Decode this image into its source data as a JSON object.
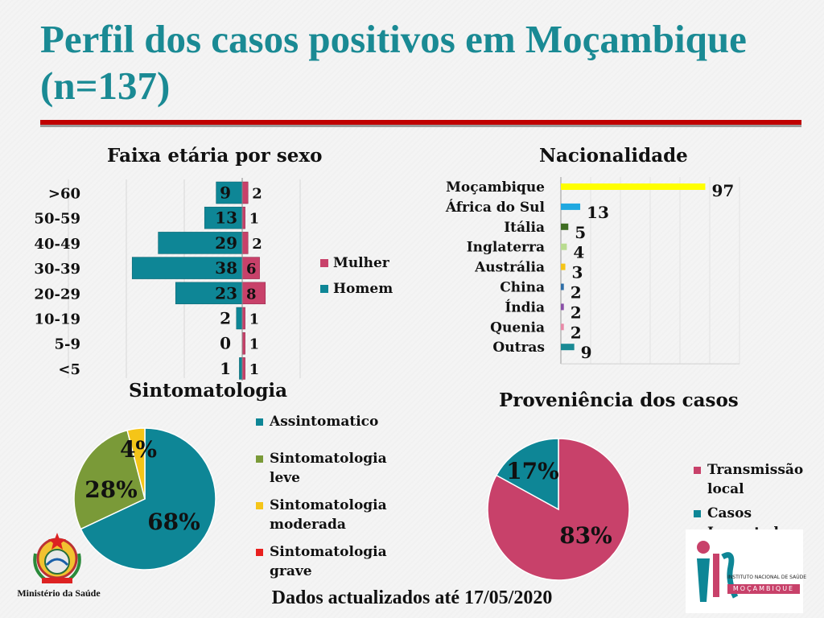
{
  "page": {
    "title_line1": "Perfil dos casos positivos em Moçambique",
    "title_line2": "(n=137)",
    "footer": "Dados actualizados até 17/05/2020",
    "ministry": "Ministério da Saúde",
    "ins_logo_text_line1": "INSTITUTO NACIONAL DE SAÚDE",
    "ins_logo_text_line2": "MOÇAMBIQUE"
  },
  "colors": {
    "title": "#1a8a94",
    "teal": "#0e8696",
    "pink": "#c8416a",
    "olive": "#7a9a38",
    "yellow": "#f5c518",
    "red": "#e8201e",
    "rule": "#c00000"
  },
  "chart_data": [
    {
      "id": "age",
      "type": "bar",
      "orientation": "horizontal-population-pyramid",
      "title": "Faixa etária por sexo",
      "categories": [
        ">60",
        "50-59",
        "40-49",
        "30-39",
        "20-29",
        "10-19",
        "5-9",
        "<5"
      ],
      "series": [
        {
          "name": "Homem",
          "values": [
            9,
            13,
            29,
            38,
            23,
            2,
            0,
            1
          ],
          "color": "#0e8696"
        },
        {
          "name": "Mulher",
          "values": [
            2,
            1,
            2,
            6,
            8,
            1,
            1,
            1
          ],
          "color": "#c8416a"
        }
      ],
      "legend": [
        "Mulher",
        "Homem"
      ],
      "grid": true
    },
    {
      "id": "nat",
      "type": "bar",
      "orientation": "horizontal",
      "title": "Nacionalidade",
      "categories": [
        "Moçambique",
        "África do Sul",
        "Itália",
        "Inglaterra",
        "Austrália",
        "China",
        "Índia",
        "Quenia",
        "Outras"
      ],
      "values": [
        97,
        13,
        5,
        4,
        3,
        2,
        2,
        2,
        9
      ],
      "colors": [
        "#ffff00",
        "#1fa8e0",
        "#3f6d22",
        "#b9dc90",
        "#f5c518",
        "#2f6fa8",
        "#8a4fa8",
        "#e88aa8",
        "#1a8a94"
      ],
      "xlim": [
        0,
        110
      ]
    },
    {
      "id": "sint",
      "type": "pie",
      "title": "Sintomatologia",
      "labels": [
        "Assintomatico",
        "Sintomatologia leve",
        "Sintomatologia moderada",
        "Sintomatologia grave"
      ],
      "values": [
        68,
        28,
        4,
        0
      ],
      "value_labels": [
        "68%",
        "28%",
        "4%",
        ""
      ],
      "colors": [
        "#0e8696",
        "#7a9a38",
        "#f5c518",
        "#e8201e"
      ]
    },
    {
      "id": "prov",
      "type": "pie",
      "title": "Proveniência dos casos",
      "labels": [
        "Transmissão local",
        "Casos Importados"
      ],
      "values": [
        83,
        17
      ],
      "value_labels": [
        "83%",
        "17%"
      ],
      "colors": [
        "#c8416a",
        "#0e8696"
      ]
    }
  ]
}
